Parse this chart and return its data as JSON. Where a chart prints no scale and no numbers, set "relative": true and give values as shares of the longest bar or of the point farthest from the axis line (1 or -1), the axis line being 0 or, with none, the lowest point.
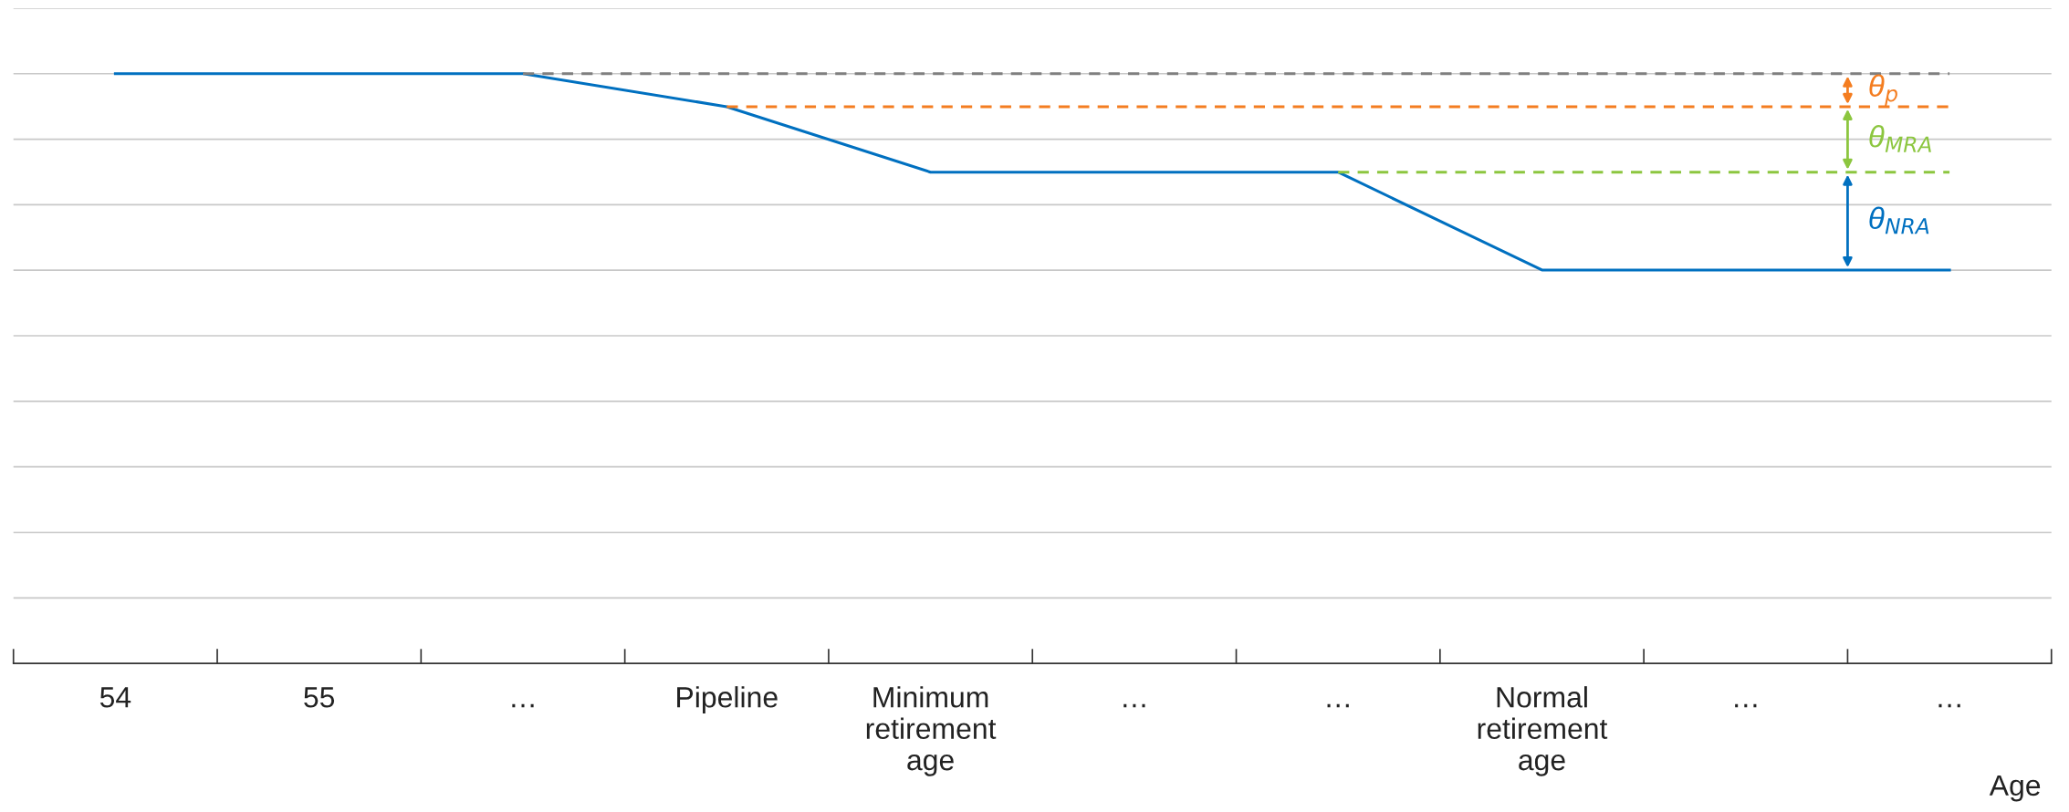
{
  "chart_data": {
    "type": "line",
    "relative": true,
    "grid": "y",
    "marker": "none",
    "categories": [
      "54",
      "55",
      "…",
      "Pipeline",
      "Minimum retirement age",
      "…",
      "…",
      "Normal retirement age",
      "…",
      "…"
    ],
    "xlabel": "Age",
    "series": [
      {
        "color": "#0070c0",
        "line_style": "solid",
        "values": [
          1,
          1,
          1,
          0.944,
          0.833,
          0.833,
          0.833,
          0.667,
          0.667,
          0.667
        ]
      },
      {
        "color": "#7f7f7f",
        "line_style": "dashed",
        "values": [
          null,
          null,
          1,
          1,
          1,
          1,
          1,
          1,
          1,
          1
        ]
      },
      {
        "color": "#f47d20",
        "line_style": "dashed",
        "values": [
          null,
          null,
          null,
          0.944,
          0.944,
          0.944,
          0.944,
          0.944,
          0.944,
          0.944
        ]
      },
      {
        "color": "#8cc63f",
        "line_style": "dashed",
        "values": [
          null,
          null,
          null,
          null,
          null,
          null,
          0.833,
          0.833,
          0.833,
          0.833
        ]
      }
    ],
    "annotations": [
      "θ$_{p}$",
      "θ$_{MRA}$",
      "θ$_{NRA}$"
    ]
  }
}
